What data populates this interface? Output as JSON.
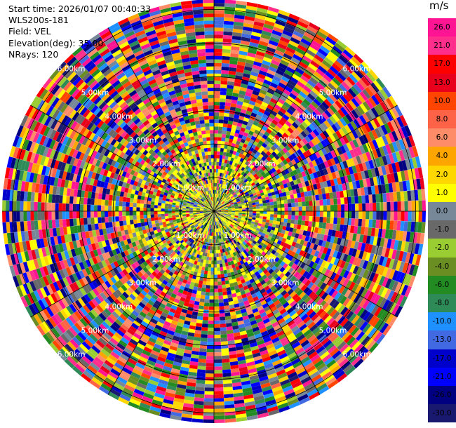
{
  "info": {
    "start_time": "Start time: 2026/01/07 00:40:33",
    "site": "WLS200s-181",
    "field": "Field: VEL",
    "elevation": "Elevation(deg): 35.00",
    "nrays": "NRays: 120"
  },
  "colorbar": {
    "unit": "m/s",
    "entries": [
      {
        "label": "26.0",
        "color": "#ff1493"
      },
      {
        "label": "21.0",
        "color": "#ff2e8c"
      },
      {
        "label": "17.0",
        "color": "#ff0000"
      },
      {
        "label": "13.0",
        "color": "#e8001c"
      },
      {
        "label": "10.0",
        "color": "#ff4500"
      },
      {
        "label": "8.0",
        "color": "#ff6347"
      },
      {
        "label": "6.0",
        "color": "#ff8c69"
      },
      {
        "label": "4.0",
        "color": "#ffa500"
      },
      {
        "label": "2.0",
        "color": "#ffd700"
      },
      {
        "label": "1.0",
        "color": "#ffff00"
      },
      {
        "label": "0.0",
        "color": "#778899"
      },
      {
        "label": "-1.0",
        "color": "#696969"
      },
      {
        "label": "-2.0",
        "color": "#9acd32"
      },
      {
        "label": "-4.0",
        "color": "#6b8e23"
      },
      {
        "label": "-6.0",
        "color": "#228b22"
      },
      {
        "label": "-8.0",
        "color": "#2e8b57"
      },
      {
        "label": "-10.0",
        "color": "#1e90ff"
      },
      {
        "label": "-13.0",
        "color": "#4169e1"
      },
      {
        "label": "-17.0",
        "color": "#0000cd"
      },
      {
        "label": "-21.0",
        "color": "#0000ff"
      },
      {
        "label": "-26.0",
        "color": "#000080"
      },
      {
        "label": "-30.0",
        "color": "#191970"
      }
    ]
  },
  "chart_data": {
    "type": "heatmap",
    "projection": "polar-ppi",
    "field": "VEL",
    "unit": "m/s",
    "elevation_deg": 35.0,
    "n_rays": 120,
    "range_rings_km": [
      1.0,
      2.0,
      3.0,
      4.0,
      5.0,
      6.0
    ],
    "ring_labels": [
      "1.00km",
      "2.00km",
      "3.00km",
      "4.00km",
      "5.00km",
      "6.00km"
    ],
    "max_range_km": 6.3,
    "spokes_deg": [
      0,
      30,
      60,
      90,
      120,
      150,
      180,
      210,
      240,
      270,
      300,
      330
    ],
    "pattern": "noise-dominated velocity field; yellow/light-green values concentrated near center (< 3 km), dense mixture of all colour classes at longer ranges",
    "grid": true
  }
}
